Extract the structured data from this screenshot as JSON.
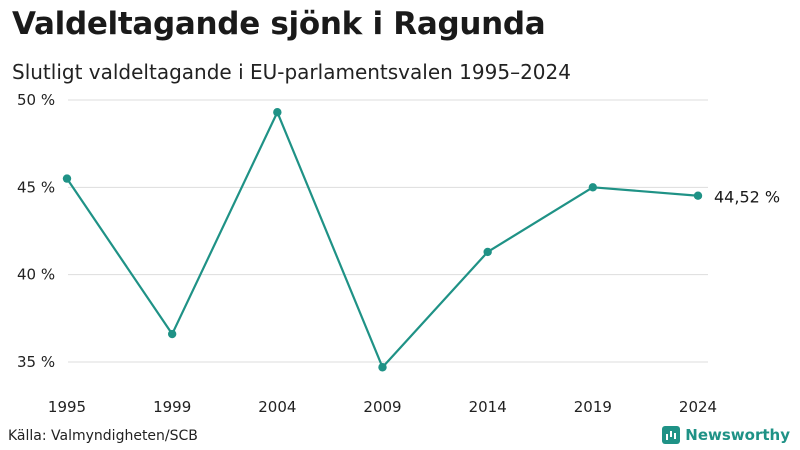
{
  "header": {
    "title": "Valdeltagande sjönk i Ragunda",
    "subtitle": "Slutligt valdeltagande i EU-parlamentsvalen 1995–2024"
  },
  "footer": {
    "source": "Källa: Valmyndigheten/SCB",
    "brand": "Newsworthy"
  },
  "colors": {
    "line": "#1f9286",
    "grid": "#dddddd",
    "text": "#1a1a1a"
  },
  "chart_data": {
    "type": "line",
    "title": "Valdeltagande sjönk i Ragunda",
    "subtitle": "Slutligt valdeltagande i EU-parlamentsvalen 1995–2024",
    "xlabel": "",
    "ylabel": "",
    "categories": [
      "1995",
      "1999",
      "2004",
      "2009",
      "2014",
      "2019",
      "2024"
    ],
    "series": [
      {
        "values": [
          45.5,
          36.6,
          49.3,
          34.7,
          41.3,
          45.0,
          44.52
        ]
      }
    ],
    "ylim": [
      35,
      50
    ],
    "yticks": [
      {
        "value": 50,
        "label": "50 %"
      },
      {
        "value": 45,
        "label": "45 %"
      },
      {
        "value": 40,
        "label": "40 %"
      },
      {
        "value": 35,
        "label": "35 %"
      }
    ],
    "end_label": "44,52 %",
    "grid": true,
    "legend": "none"
  }
}
